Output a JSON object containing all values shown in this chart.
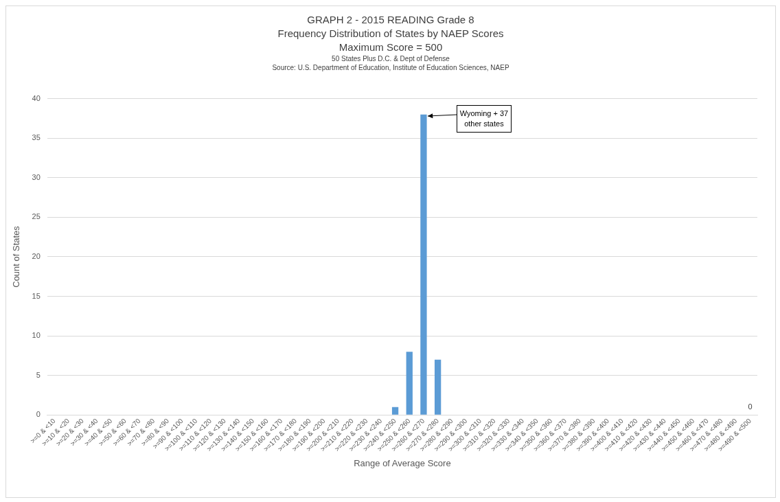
{
  "chart_data": {
    "type": "bar",
    "title": "GRAPH 2 - 2015 READING Grade 8",
    "subtitle": "Frequency Distribution of States by NAEP Scores\nMaximum Score = 500",
    "xlabel": "Range of Average Score",
    "ylabel": "Count of States",
    "categories": [
      ">=0 & <10",
      ">=10 & <20",
      ">=20 & <30",
      ">=30 & <40",
      ">=40 & <50",
      ">=50 & <60",
      ">=60 & <70",
      ">=70 & <80",
      ">=80 & <90",
      ">=90 & <100",
      ">=100 & <110",
      ">=110 & <120",
      ">=120 & <130",
      ">=130 & <140",
      ">=140 & <150",
      ">=150 & <160",
      ">=160 & <170",
      ">=170 & <180",
      ">=180 & <190",
      ">=190 & <200",
      ">=200 & <210",
      ">=210 & <220",
      ">=220 & <230",
      ">=230 & <240",
      ">=240 & <250",
      ">=250 & <260",
      ">=260 & <270",
      ">=270 & <280",
      ">=280 & <290",
      ">=290 & <300",
      ">=300 & <310",
      ">=310 & <320",
      ">=320 & <330",
      ">=330 & <340",
      ">=340 & <350",
      ">=350 & <360",
      ">=360 & <370",
      ">=370 & <380",
      ">=380 & <390",
      ">=390 & <400",
      ">=400 & <410",
      ">=410 & <420",
      ">=420 & <430",
      ">=430 & <440",
      ">=440 & <450",
      ">=450 & <460",
      ">=460 & <470",
      ">=470 & <480",
      ">=480 & <490",
      ">=490 & <500"
    ],
    "values": [
      0,
      0,
      0,
      0,
      0,
      0,
      0,
      0,
      0,
      0,
      0,
      0,
      0,
      0,
      0,
      0,
      0,
      0,
      0,
      0,
      0,
      0,
      0,
      0,
      1,
      8,
      38,
      7,
      0,
      0,
      0,
      0,
      0,
      0,
      0,
      0,
      0,
      0,
      0,
      0,
      0,
      0,
      0,
      0,
      0,
      0,
      0,
      0,
      0,
      0
    ],
    "value_labels": [
      null,
      null,
      null,
      null,
      null,
      null,
      null,
      null,
      null,
      null,
      null,
      null,
      null,
      null,
      null,
      null,
      null,
      null,
      null,
      null,
      null,
      null,
      null,
      null,
      null,
      null,
      null,
      null,
      null,
      null,
      null,
      null,
      null,
      null,
      null,
      null,
      null,
      null,
      null,
      null,
      null,
      null,
      null,
      null,
      null,
      null,
      null,
      null,
      null,
      "0"
    ],
    "color": "#5b9bd5",
    "ylim": [
      0,
      40
    ],
    "yticks": [
      0,
      5,
      10,
      15,
      20,
      25,
      30,
      35,
      40
    ],
    "grid": "y",
    "legend": false,
    "annotations": [
      "50 States Plus D.C. & Dept of Defense",
      "Source: U.S. Department of Education, Institute of Education Sciences, NAEP",
      {
        "text": "Wyoming + 37 other states",
        "x": ">=260 & <270",
        "y": 38
      }
    ]
  }
}
